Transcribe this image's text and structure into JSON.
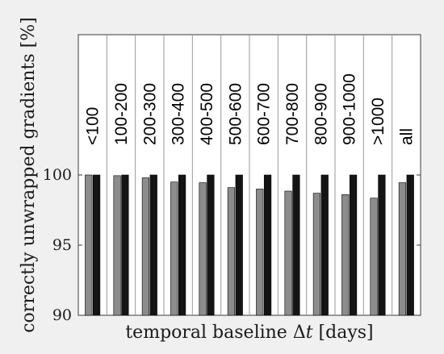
{
  "chart_data": {
    "type": "bar",
    "categories": [
      "<100",
      "100-200",
      "200-300",
      "300-400",
      "400-500",
      "500-600",
      "600-700",
      "700-800",
      "800-900",
      "900-1000",
      ">1000",
      "all"
    ],
    "series": [
      {
        "values": [
          100.0,
          99.95,
          99.8,
          99.5,
          99.45,
          99.1,
          99.0,
          98.85,
          98.7,
          98.6,
          98.35,
          99.45
        ],
        "color": "#8c8c8c"
      },
      {
        "values": [
          100,
          100,
          100,
          100,
          100,
          100,
          100,
          100,
          100,
          100,
          100,
          100
        ],
        "color": "#141414"
      }
    ],
    "xlabel_parts": [
      "temporal baseline ",
      "Δ",
      "t",
      " [days]"
    ],
    "ylabel": "correctly unwrapped gradients [%]",
    "ylim": [
      90,
      110
    ],
    "yticks": [
      90,
      95,
      100
    ],
    "grid": "vertical separators between categories",
    "legend": "none"
  }
}
